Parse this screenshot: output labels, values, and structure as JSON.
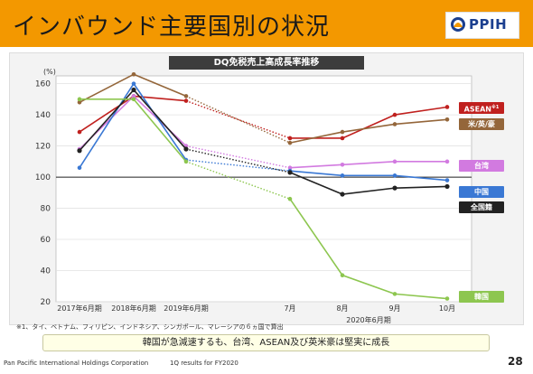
{
  "header": {
    "title": "インバウンド主要国別の状況",
    "logo_text": "PPIH"
  },
  "footnote": "※1、タイ、ベトナム、フィリピン、インドネシア、シンガポール、マレーシアの６ヵ国で算出",
  "summary": "韓国が急減速するも、台湾、ASEAN及び英米豪は堅実に成長",
  "footer": {
    "company": "Pan Pacific International Holdings Corporation",
    "report": "1Q results for FY2020",
    "page": "28"
  },
  "colors": {
    "header_bg": "#f39800",
    "logo_blue": "#1b3f8f"
  },
  "chart_data": {
    "type": "line",
    "title": "DQ免税売上高成長率推移",
    "y_unit": "(%)",
    "ylim": [
      20,
      165
    ],
    "yticks": [
      20,
      40,
      60,
      80,
      100,
      120,
      140,
      160
    ],
    "categories": [
      "2017年6月期",
      "2018年6月期",
      "2019年6月期",
      "7月",
      "8月",
      "9月",
      "10月"
    ],
    "period_label": "2020年6月期",
    "reference_line": 100,
    "grid": true,
    "legend_position": "right",
    "dotted_segment": [
      2,
      3
    ],
    "series": [
      {
        "name": "ASEAN",
        "superscript": "※1",
        "color": "#c0201e",
        "values": [
          129,
          152,
          149,
          125,
          125,
          140,
          145
        ]
      },
      {
        "name": "米/英/豪",
        "color": "#94663a",
        "values": [
          148,
          166,
          152,
          122,
          129,
          134,
          137
        ]
      },
      {
        "name": "台湾",
        "color": "#d27ae0",
        "values": [
          118,
          152,
          120,
          106,
          108,
          110,
          110
        ]
      },
      {
        "name": "中国",
        "color": "#3a78d4",
        "values": [
          106,
          160,
          111,
          104,
          101,
          101,
          98
        ]
      },
      {
        "name": "全国籍",
        "color": "#222222",
        "values": [
          117,
          156,
          118,
          103,
          89,
          93,
          94
        ]
      },
      {
        "name": "韓国",
        "color": "#8dc64f",
        "values": [
          150,
          150,
          110,
          86,
          37,
          25,
          22
        ]
      }
    ]
  }
}
